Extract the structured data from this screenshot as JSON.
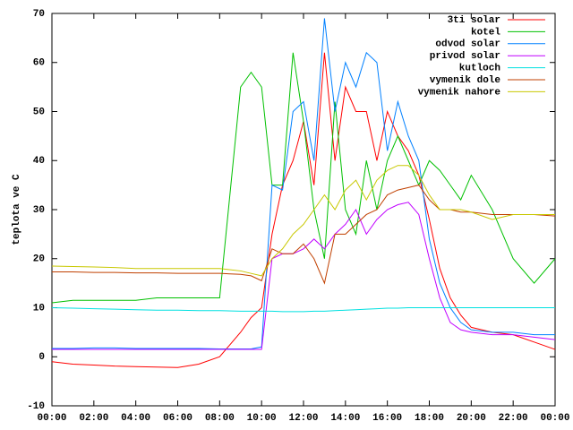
{
  "chart_data": {
    "type": "line",
    "ylabel": "teplota ve C",
    "x": [
      0,
      1,
      2,
      3,
      4,
      5,
      6,
      7,
      8,
      9,
      9.5,
      10,
      10.5,
      11,
      11.5,
      12,
      12.5,
      13,
      13.5,
      14,
      14.5,
      15,
      15.5,
      16,
      16.5,
      17,
      17.5,
      18,
      18.5,
      19,
      19.5,
      20,
      21,
      22,
      23,
      24
    ],
    "xlim": [
      0,
      24
    ],
    "xticks": [
      {
        "value": 0,
        "label": "00:00"
      },
      {
        "value": 2,
        "label": "02:00"
      },
      {
        "value": 4,
        "label": "04:00"
      },
      {
        "value": 6,
        "label": "06:00"
      },
      {
        "value": 8,
        "label": "08:00"
      },
      {
        "value": 10,
        "label": "10:00"
      },
      {
        "value": 12,
        "label": "12:00"
      },
      {
        "value": 14,
        "label": "14:00"
      },
      {
        "value": 16,
        "label": "16:00"
      },
      {
        "value": 18,
        "label": "18:00"
      },
      {
        "value": 20,
        "label": "20:00"
      },
      {
        "value": 22,
        "label": "22:00"
      },
      {
        "value": 24,
        "label": "00:00"
      }
    ],
    "ylim": [
      -10,
      70
    ],
    "yticks": [
      -10,
      0,
      10,
      20,
      30,
      40,
      50,
      60,
      70
    ],
    "legend": "top-right",
    "series": [
      {
        "name": "3ti solar",
        "color": "#ff0000",
        "values": [
          -1,
          -1.5,
          -1.7,
          -1.9,
          -2,
          -2.1,
          -2.2,
          -1.5,
          0,
          5,
          8,
          10,
          25,
          35,
          40,
          48,
          35,
          62,
          40,
          55,
          50,
          50,
          40,
          50,
          45,
          42,
          37,
          28,
          18,
          12,
          8.5,
          6,
          5,
          4.5,
          3,
          1.5
        ]
      },
      {
        "name": "kotel",
        "color": "#00c000",
        "values": [
          11,
          11.5,
          11.5,
          11.5,
          11.5,
          12,
          12,
          12,
          12,
          55,
          58,
          55,
          35,
          35,
          62,
          48,
          30,
          20,
          52,
          30,
          25,
          40,
          30,
          40,
          45,
          40,
          35,
          40,
          38,
          35,
          32,
          37,
          30,
          20,
          15,
          20
        ]
      },
      {
        "name": "odvod solar",
        "color": "#0080ff",
        "values": [
          1.7,
          1.7,
          1.8,
          1.8,
          1.7,
          1.7,
          1.7,
          1.7,
          1.6,
          1.6,
          1.6,
          2,
          35,
          34,
          50,
          52,
          40,
          69,
          50,
          60,
          55,
          62,
          60,
          42,
          52,
          45,
          40,
          24,
          15,
          10,
          7,
          5.5,
          5,
          5,
          4.5,
          4.5
        ]
      },
      {
        "name": "privod solar",
        "color": "#c000ff",
        "values": [
          1.5,
          1.5,
          1.5,
          1.5,
          1.5,
          1.5,
          1.5,
          1.5,
          1.5,
          1.5,
          1.5,
          1.5,
          20,
          21,
          21,
          22,
          24,
          22,
          25,
          27,
          30,
          25,
          28,
          30,
          31,
          31.5,
          29,
          20,
          12,
          7,
          5.5,
          5,
          4.5,
          4.5,
          4,
          3.5
        ]
      },
      {
        "name": "kutloch",
        "color": "#00e0e0",
        "values": [
          10,
          9.9,
          9.8,
          9.7,
          9.6,
          9.5,
          9.5,
          9.4,
          9.4,
          9.3,
          9.3,
          9.3,
          9.3,
          9.2,
          9.2,
          9.2,
          9.3,
          9.3,
          9.4,
          9.5,
          9.6,
          9.7,
          9.8,
          9.9,
          9.9,
          10,
          10,
          10,
          10,
          10,
          10,
          10,
          10,
          10,
          10,
          10
        ]
      },
      {
        "name": "vymenik dole",
        "color": "#c04000",
        "values": [
          17.3,
          17.3,
          17.2,
          17.2,
          17.1,
          17.1,
          17,
          17,
          17,
          16.8,
          16.5,
          15.5,
          22,
          21,
          21,
          23,
          20,
          15,
          25,
          25,
          27,
          29,
          30,
          33,
          34,
          34.5,
          35,
          32,
          30,
          30,
          29.5,
          29.5,
          29,
          29,
          29,
          28.7
        ]
      },
      {
        "name": "vymenik nahore",
        "color": "#c8c800",
        "values": [
          18.5,
          18.4,
          18.3,
          18.2,
          18,
          18,
          18,
          18,
          18,
          17.5,
          17,
          16.5,
          20,
          22,
          25,
          27,
          30,
          33,
          30,
          34,
          36,
          32,
          36,
          38,
          39,
          39,
          37,
          33,
          30,
          30,
          30,
          29.5,
          28,
          29,
          29,
          29
        ]
      }
    ]
  }
}
